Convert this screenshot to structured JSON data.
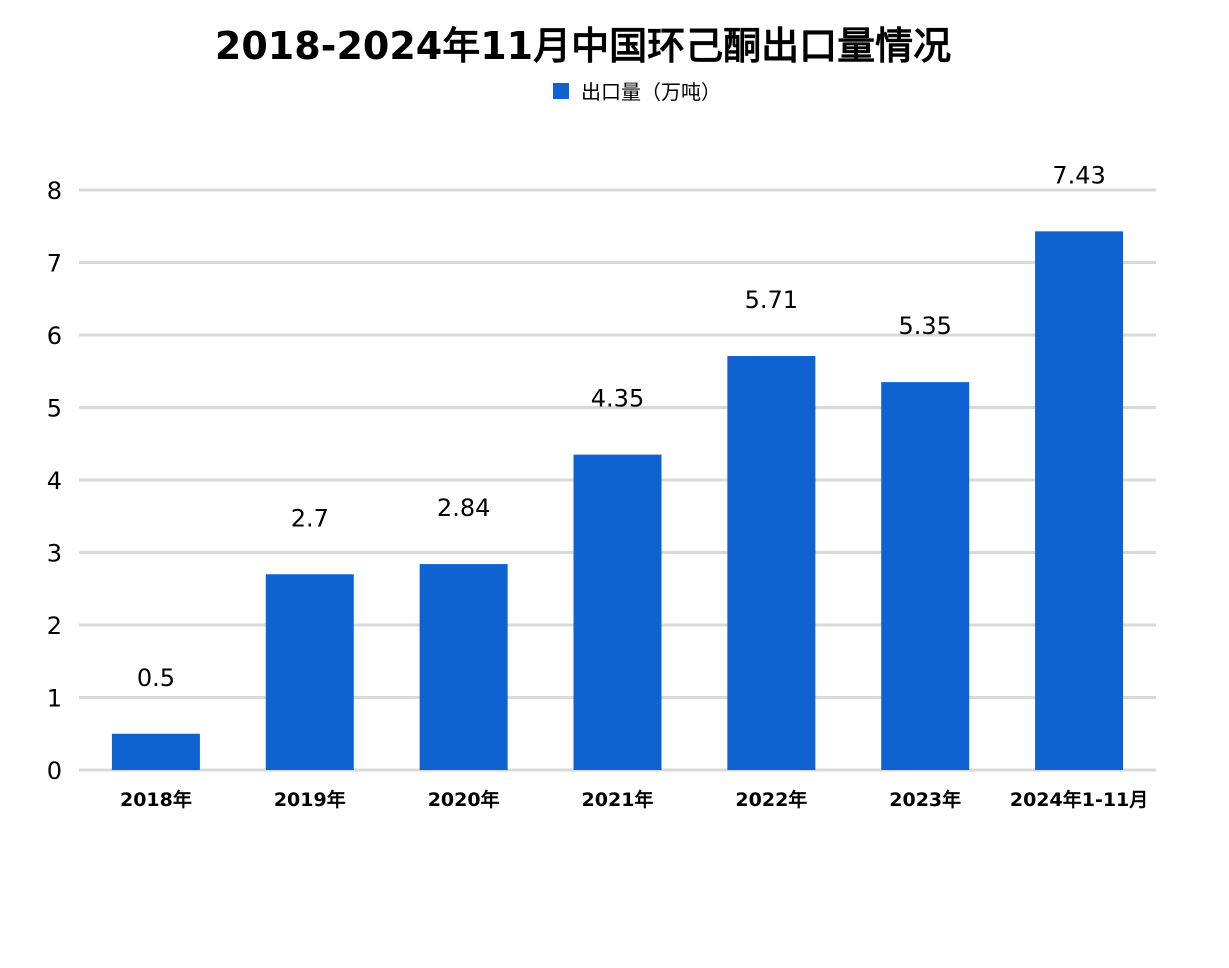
{
  "chart_data": {
    "type": "bar",
    "title": "2018-2024年11月中国环己酮出口量情况",
    "categories": [
      "2018年",
      "2019年",
      "2020年",
      "2021年",
      "2022年",
      "2023年",
      "2024年1-11月"
    ],
    "series": [
      {
        "name": "出口量（万吨）",
        "values": [
          0.5,
          2.7,
          2.84,
          4.35,
          5.71,
          5.35,
          7.43
        ],
        "color": "#0F62D2"
      }
    ],
    "data_labels": [
      "0.5",
      "2.7",
      "2.84",
      "4.35",
      "5.71",
      "5.35",
      "7.43"
    ],
    "ylim": [
      0,
      8
    ],
    "yticks": [
      0,
      1,
      2,
      3,
      4,
      5,
      6,
      7,
      8
    ],
    "xlabel": "",
    "ylabel": "",
    "grid": true,
    "legend_position": "top-center",
    "colors": {
      "bar": "#0F62D2",
      "grid": "#D9D9D9",
      "text": "#000000"
    }
  }
}
